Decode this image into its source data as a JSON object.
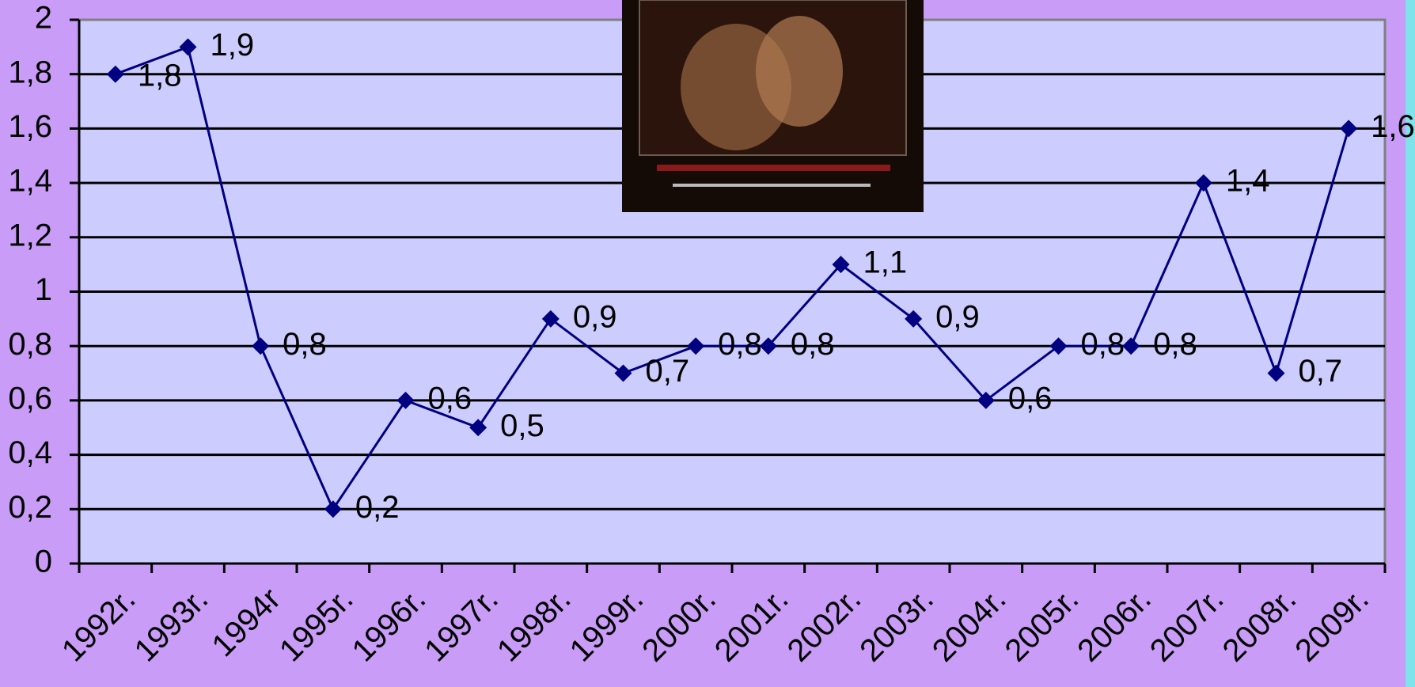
{
  "chart_data": {
    "type": "line",
    "categories": [
      "1992r.",
      "1993r.",
      "1994r",
      "1995r.",
      "1996r.",
      "1997r.",
      "1998r.",
      "1999r.",
      "2000r.",
      "2001r.",
      "2002r.",
      "2003r.",
      "2004r.",
      "2005r.",
      "2006r.",
      "2007r.",
      "2008r.",
      "2009r."
    ],
    "series": [
      {
        "color": "#000080",
        "values": [
          1.8,
          1.9,
          0.8,
          0.2,
          0.6,
          0.5,
          0.9,
          0.7,
          0.8,
          0.8,
          1.1,
          0.9,
          0.6,
          0.8,
          0.8,
          1.4,
          0.7,
          1.6
        ],
        "value_labels": [
          "1,8",
          "1,9",
          "0,8",
          "0,2",
          "0,6",
          "0,5",
          "0,9",
          "0,7",
          "0,8",
          "0,8",
          "1,1",
          "0,9",
          "0,6",
          "0,8",
          "0,8",
          "1,4",
          "0,7",
          "1,6"
        ]
      }
    ],
    "ylim": [
      0,
      2
    ],
    "yticks": [
      0,
      {
        "value": 0.2,
        "label": "0,2"
      },
      {
        "value": 0.4,
        "label": "0,4"
      },
      {
        "value": 0.6,
        "label": "0,6"
      },
      {
        "value": 0.8,
        "label": "0,8"
      },
      1,
      {
        "value": 1.2,
        "label": "1,2"
      },
      {
        "value": 1.4,
        "label": "1,4"
      },
      {
        "value": 1.6,
        "label": "1,6"
      },
      {
        "value": 1.8,
        "label": "1,8"
      },
      2
    ],
    "grid": true
  }
}
